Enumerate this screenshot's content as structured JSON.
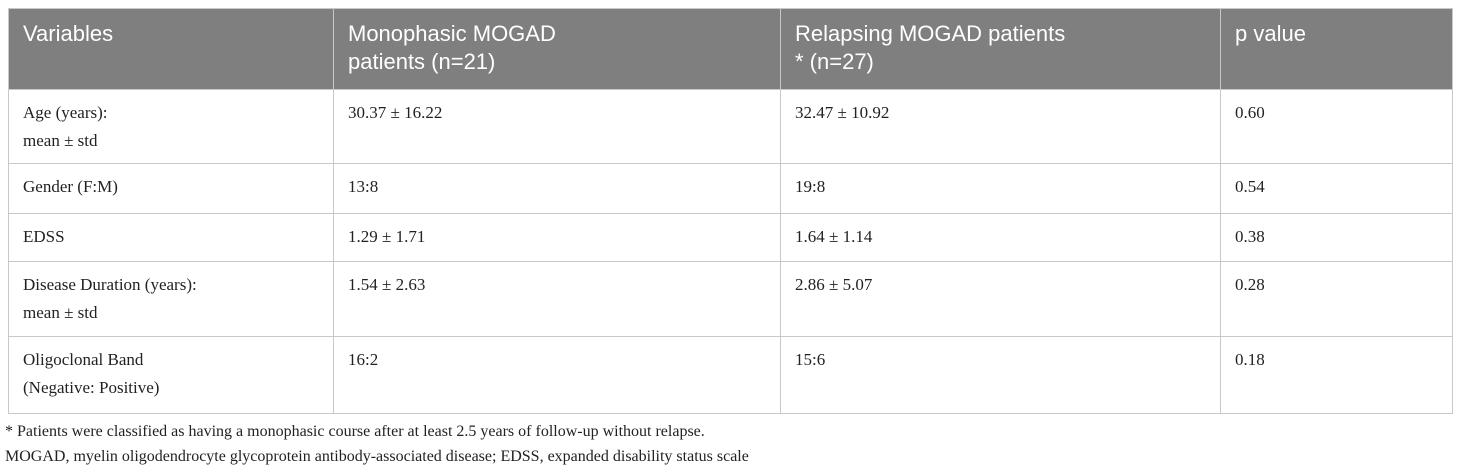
{
  "table": {
    "header": [
      [
        "Variables"
      ],
      [
        "Monophasic MOGAD",
        "patients (n=21)"
      ],
      [
        "Relapsing MOGAD patients",
        "* (n=27)"
      ],
      [
        "p value"
      ]
    ],
    "rows": [
      [
        [
          "Age (years):",
          "mean ± std"
        ],
        [
          "30.37 ± 16.22"
        ],
        [
          "32.47 ± 10.92"
        ],
        [
          "0.60"
        ]
      ],
      [
        [
          "Gender (F:M)"
        ],
        [
          "13:8"
        ],
        [
          "19:8"
        ],
        [
          "0.54"
        ]
      ],
      [
        [
          "EDSS"
        ],
        [
          "1.29 ± 1.71"
        ],
        [
          "1.64 ± 1.14"
        ],
        [
          "0.38"
        ]
      ],
      [
        [
          "Disease Duration (years):",
          "mean ± std"
        ],
        [
          "1.54 ± 2.63"
        ],
        [
          "2.86 ± 5.07"
        ],
        [
          "0.28"
        ]
      ],
      [
        [
          "Oligoclonal Band",
          "(Negative: Positive)"
        ],
        [
          "16:2"
        ],
        [
          "15:6"
        ],
        [
          "0.18"
        ]
      ]
    ]
  },
  "footnotes": [
    "* Patients were classified as having a monophasic course after at least 2.5 years of follow-up without relapse.",
    "MOGAD, myelin oligodendrocyte glycoprotein antibody-associated disease; EDSS, expanded disability status scale"
  ]
}
